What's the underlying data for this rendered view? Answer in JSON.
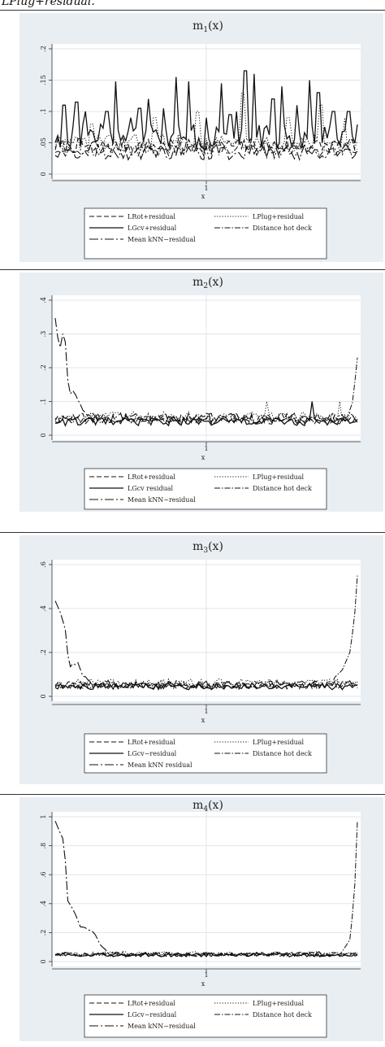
{
  "header": {
    "text": "LPlug+residual."
  },
  "chart_data": [
    {
      "type": "line",
      "title_main": "m",
      "title_sub": "1",
      "title_tail": "(x)",
      "xlabel": "x",
      "x_ticks": [
        "1"
      ],
      "ylim": [
        0,
        0.2
      ],
      "y_ticks": [
        0,
        0.05,
        0.1,
        0.15,
        0.2
      ],
      "y_tick_labels": [
        "0",
        ".05",
        ".1",
        ".15",
        ".2"
      ],
      "grid": true,
      "legend_position": "bottom",
      "series": [
        {
          "name": "LRot+residual",
          "dash": "dashed",
          "base": 0.045,
          "amp": 0.012,
          "spikes": [],
          "left": [],
          "right": []
        },
        {
          "name": "LPlug+residual",
          "dash": "dotted",
          "base": 0.05,
          "amp": 0.014,
          "spikes": [
            [
              0.12,
              0.08
            ],
            [
              0.33,
              0.09
            ],
            [
              0.47,
              0.1
            ],
            [
              0.62,
              0.13
            ],
            [
              0.77,
              0.09
            ],
            [
              0.88,
              0.11
            ],
            [
              0.96,
              0.09
            ]
          ],
          "left": [],
          "right": []
        },
        {
          "name": "LGcv+residual",
          "dash": "solid",
          "base": 0.06,
          "amp": 0.02,
          "spikes": [
            [
              0.03,
              0.11
            ],
            [
              0.07,
              0.115
            ],
            [
              0.1,
              0.1
            ],
            [
              0.17,
              0.1
            ],
            [
              0.2,
              0.148
            ],
            [
              0.25,
              0.09
            ],
            [
              0.28,
              0.105
            ],
            [
              0.31,
              0.12
            ],
            [
              0.36,
              0.105
            ],
            [
              0.4,
              0.155
            ],
            [
              0.44,
              0.148
            ],
            [
              0.5,
              0.09
            ],
            [
              0.55,
              0.145
            ],
            [
              0.58,
              0.095
            ],
            [
              0.6,
              0.1
            ],
            [
              0.63,
              0.165
            ],
            [
              0.66,
              0.16
            ],
            [
              0.72,
              0.12
            ],
            [
              0.75,
              0.14
            ],
            [
              0.8,
              0.11
            ],
            [
              0.84,
              0.15
            ],
            [
              0.87,
              0.13
            ],
            [
              0.92,
              0.1
            ],
            [
              0.97,
              0.1
            ]
          ],
          "left": [],
          "right": []
        },
        {
          "name": "Distance hot deck",
          "dash": "dashdot",
          "base": 0.04,
          "amp": 0.012,
          "spikes": [],
          "left": [],
          "right": []
        },
        {
          "name": "Mean kNN−residual",
          "dash": "longdash",
          "base": 0.035,
          "amp": 0.012,
          "spikes": [],
          "left": [],
          "right": []
        }
      ],
      "legend": [
        {
          "label": "LRot+residual",
          "dash": "dashed"
        },
        {
          "label": "LPlug+residual",
          "dash": "dotted"
        },
        {
          "label": "LGcv+residual",
          "dash": "solid"
        },
        {
          "label": "Distance hot deck",
          "dash": "dashdot"
        },
        {
          "label": "Mean kNN−residual",
          "dash": "longdash"
        }
      ]
    },
    {
      "type": "line",
      "title_main": "m",
      "title_sub": "2",
      "title_tail": "(x)",
      "xlabel": "x",
      "x_ticks": [
        "1"
      ],
      "ylim": [
        0,
        0.4
      ],
      "y_ticks": [
        0,
        0.1,
        0.2,
        0.3,
        0.4
      ],
      "y_tick_labels": [
        "0",
        ".1",
        ".2",
        ".3",
        ".4"
      ],
      "grid": true,
      "legend_position": "bottom",
      "series": [
        {
          "name": "LRot+residual",
          "dash": "dashed",
          "base": 0.05,
          "amp": 0.015,
          "spikes": [],
          "left": [],
          "right": []
        },
        {
          "name": "LPlug+residual",
          "dash": "dotted",
          "base": 0.055,
          "amp": 0.015,
          "spikes": [
            [
              0.7,
              0.1
            ],
            [
              0.94,
              0.1
            ]
          ],
          "left": [],
          "right": []
        },
        {
          "name": "LGcv residual",
          "dash": "solid",
          "base": 0.04,
          "amp": 0.012,
          "spikes": [
            [
              0.85,
              0.1
            ]
          ],
          "left": [],
          "right": []
        },
        {
          "name": "Distance hot deck",
          "dash": "dashdot",
          "base": 0.045,
          "amp": 0.012,
          "spikes": [],
          "left": [],
          "right": [
            [
              0.965,
              0.05
            ],
            [
              0.985,
              0.1
            ],
            [
              1.0,
              0.23
            ]
          ]
        },
        {
          "name": "Mean kNN−residual",
          "dash": "longdash",
          "base": 0.05,
          "amp": 0.015,
          "spikes": [],
          "left": [
            [
              0.0,
              0.34
            ],
            [
              0.015,
              0.26
            ],
            [
              0.03,
              0.32
            ],
            [
              0.045,
              0.11
            ],
            [
              0.06,
              0.13
            ],
            [
              0.08,
              0.09
            ],
            [
              0.1,
              0.06
            ]
          ],
          "right": []
        }
      ],
      "legend": [
        {
          "label": "LRot+residual",
          "dash": "dashed"
        },
        {
          "label": "LPlug+residual",
          "dash": "dotted"
        },
        {
          "label": "LGcv residual",
          "dash": "solid"
        },
        {
          "label": "Distance hot deck",
          "dash": "dashdot"
        },
        {
          "label": "Mean kNN−residual",
          "dash": "longdash"
        }
      ]
    },
    {
      "type": "line",
      "title_main": "m",
      "title_sub": "3",
      "title_tail": "(x)",
      "xlabel": "x",
      "x_ticks": [
        "1"
      ],
      "ylim": [
        0,
        0.6
      ],
      "y_ticks": [
        0,
        0.2,
        0.4,
        0.6
      ],
      "y_tick_labels": [
        "0",
        ".2",
        ".4",
        ".6"
      ],
      "grid": true,
      "legend_position": "bottom",
      "series": [
        {
          "name": "LRot+residual",
          "dash": "dashed",
          "base": 0.05,
          "amp": 0.018,
          "spikes": [],
          "left": [],
          "right": []
        },
        {
          "name": "LPlug+residual",
          "dash": "dotted",
          "base": 0.06,
          "amp": 0.02,
          "spikes": [],
          "left": [],
          "right": []
        },
        {
          "name": "LGcv−residual",
          "dash": "solid",
          "base": 0.045,
          "amp": 0.015,
          "spikes": [],
          "left": [],
          "right": []
        },
        {
          "name": "Distance hot deck",
          "dash": "dashdot",
          "base": 0.05,
          "amp": 0.015,
          "spikes": [],
          "left": [],
          "right": [
            [
              0.92,
              0.08
            ],
            [
              0.95,
              0.12
            ],
            [
              0.975,
              0.2
            ],
            [
              0.99,
              0.35
            ],
            [
              1.0,
              0.55
            ]
          ]
        },
        {
          "name": "Mean kNN residual",
          "dash": "longdash",
          "base": 0.055,
          "amp": 0.018,
          "spikes": [],
          "left": [
            [
              0.0,
              0.43
            ],
            [
              0.02,
              0.37
            ],
            [
              0.035,
              0.3
            ],
            [
              0.045,
              0.14
            ],
            [
              0.06,
              0.14
            ],
            [
              0.075,
              0.16
            ],
            [
              0.09,
              0.1
            ],
            [
              0.11,
              0.07
            ]
          ],
          "right": []
        }
      ],
      "legend": [
        {
          "label": "LRot+residual",
          "dash": "dashed"
        },
        {
          "label": "LPlug+residual",
          "dash": "dotted"
        },
        {
          "label": "LGcv−residual",
          "dash": "solid"
        },
        {
          "label": "Distance hot deck",
          "dash": "dashdot"
        },
        {
          "label": "Mean kNN residual",
          "dash": "longdash"
        }
      ]
    },
    {
      "type": "line",
      "title_main": "m",
      "title_sub": "4",
      "title_tail": "(x)",
      "xlabel": "x",
      "x_ticks": [
        "1"
      ],
      "ylim": [
        0,
        1
      ],
      "y_ticks": [
        0,
        0.2,
        0.4,
        0.6,
        0.8,
        1
      ],
      "y_tick_labels": [
        "0",
        ".2",
        ".4",
        ".6",
        ".8",
        "1"
      ],
      "grid": true,
      "legend_position": "bottom",
      "series": [
        {
          "name": "LRot+residual",
          "dash": "dashed",
          "base": 0.05,
          "amp": 0.015,
          "spikes": [],
          "left": [],
          "right": []
        },
        {
          "name": "LPlug+residual",
          "dash": "dotted",
          "base": 0.055,
          "amp": 0.015,
          "spikes": [],
          "left": [],
          "right": []
        },
        {
          "name": "LGcv−residual",
          "dash": "solid",
          "base": 0.045,
          "amp": 0.012,
          "spikes": [],
          "left": [],
          "right": []
        },
        {
          "name": "Distance hot deck",
          "dash": "dashdot",
          "base": 0.05,
          "amp": 0.012,
          "spikes": [],
          "left": [],
          "right": [
            [
              0.95,
              0.07
            ],
            [
              0.975,
              0.15
            ],
            [
              0.99,
              0.45
            ],
            [
              1.0,
              0.97
            ]
          ]
        },
        {
          "name": "Mean kNN−residual",
          "dash": "longdash",
          "base": 0.05,
          "amp": 0.015,
          "spikes": [],
          "left": [
            [
              0.0,
              0.97
            ],
            [
              0.015,
              0.9
            ],
            [
              0.03,
              0.83
            ],
            [
              0.04,
              0.42
            ],
            [
              0.06,
              0.36
            ],
            [
              0.08,
              0.25
            ],
            [
              0.11,
              0.22
            ],
            [
              0.13,
              0.2
            ],
            [
              0.15,
              0.12
            ],
            [
              0.17,
              0.07
            ]
          ],
          "right": []
        }
      ],
      "legend": [
        {
          "label": "LRot+residual",
          "dash": "dashed"
        },
        {
          "label": "LPlug+residual",
          "dash": "dotted"
        },
        {
          "label": "LGcv−residual",
          "dash": "solid"
        },
        {
          "label": "Distance hot deck",
          "dash": "dashdot"
        },
        {
          "label": "Mean kNN−residual",
          "dash": "longdash"
        }
      ]
    }
  ]
}
